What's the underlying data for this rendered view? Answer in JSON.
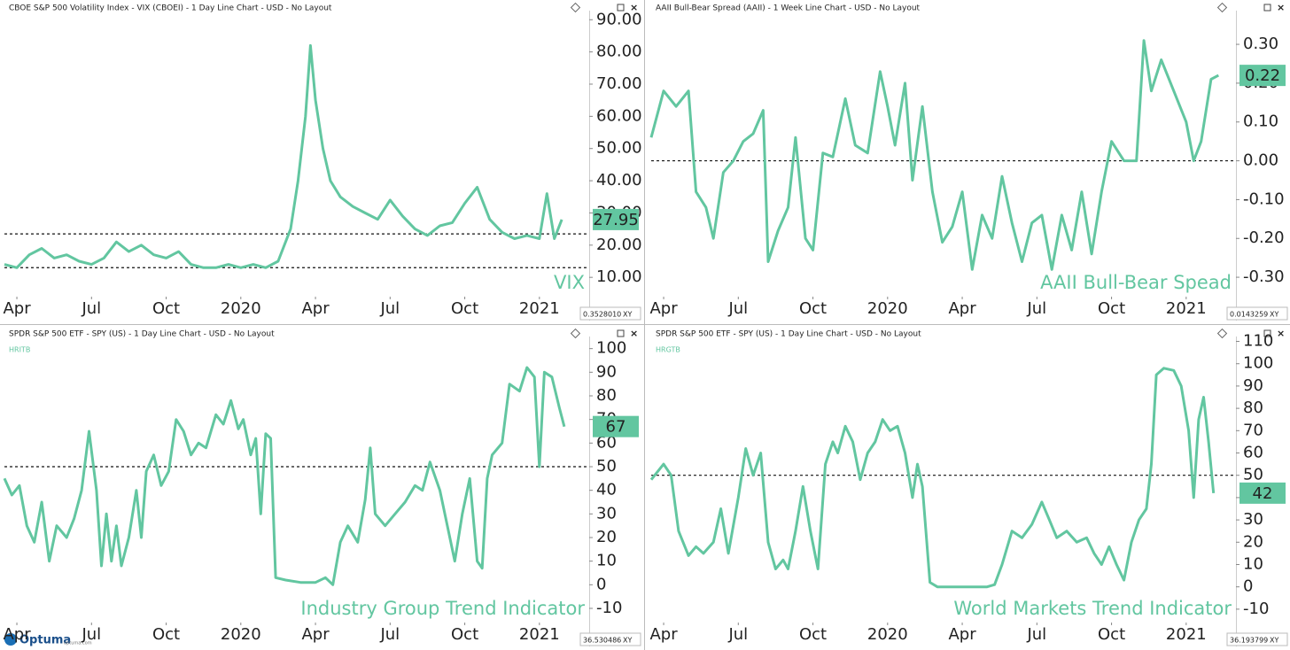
{
  "chart_data": [
    {
      "type": "line",
      "title": "CBOE S&P 500 Volatility Index - VIX (CBOEI) - 1 Day Line Chart - USD - No Layout",
      "watermark": "VIX",
      "color": "#62c6a0",
      "last_value": 27.95,
      "hlines": [
        23.5,
        13
      ],
      "corner_label": "0.3528010",
      "corner_tag": "XY",
      "x": [
        2.5,
        3,
        3.5,
        4,
        4.5,
        5,
        5.5,
        6,
        6.5,
        7,
        7.5,
        8,
        8.5,
        9,
        9.5,
        10,
        10.5,
        11,
        11.5,
        12,
        12.5,
        13,
        13.5,
        14,
        14.3,
        14.6,
        14.8,
        15,
        15.3,
        15.6,
        16,
        16.5,
        17,
        17.5,
        18,
        18.5,
        19,
        19.5,
        20,
        20.5,
        21,
        21.5,
        22,
        22.5,
        23,
        23.5,
        24,
        24.3,
        24.6,
        24.9
      ],
      "values": [
        14,
        13,
        17,
        19,
        16,
        17,
        15,
        14,
        16,
        21,
        18,
        20,
        17,
        16,
        18,
        14,
        13,
        13,
        14,
        13,
        14,
        13,
        15,
        25,
        40,
        60,
        82,
        65,
        50,
        40,
        35,
        32,
        30,
        28,
        34,
        29,
        25,
        23,
        26,
        27,
        33,
        38,
        28,
        24,
        22,
        23,
        22,
        36,
        22,
        27.95
      ],
      "xlim": [
        2.5,
        26
      ],
      "xticks": [
        {
          "value": 3,
          "label": "Apr"
        },
        {
          "value": 6,
          "label": "Jul"
        },
        {
          "value": 9,
          "label": "Oct"
        },
        {
          "value": 12,
          "label": "2020"
        },
        {
          "value": 15,
          "label": "Apr"
        },
        {
          "value": 18,
          "label": "Jul"
        },
        {
          "value": 21,
          "label": "Oct"
        },
        {
          "value": 24,
          "label": "2021"
        }
      ],
      "ylim": [
        4,
        92
      ],
      "yticks": [
        {
          "value": 10,
          "label": "10.00"
        },
        {
          "value": 20,
          "label": "20.00"
        },
        {
          "value": 30,
          "label": "30.00"
        },
        {
          "value": 40,
          "label": "40.00"
        },
        {
          "value": 50,
          "label": "50.00"
        },
        {
          "value": 60,
          "label": "60.00"
        },
        {
          "value": 70,
          "label": "70.00"
        },
        {
          "value": 80,
          "label": "80.00"
        },
        {
          "value": 90,
          "label": "90.00"
        }
      ]
    },
    {
      "type": "line",
      "title": "AAII Bull-Bear Spread (AAII) - 1 Week Line Chart - USD - No Layout",
      "watermark": "AAII Bull-Bear Spead",
      "color": "#62c6a0",
      "last_value": 0.22,
      "hlines": [
        0
      ],
      "corner_label": "0.0143259",
      "corner_tag": "XY",
      "x": [
        2.5,
        3,
        3.5,
        4,
        4.3,
        4.7,
        5,
        5.4,
        5.8,
        6.2,
        6.6,
        7,
        7.2,
        7.6,
        8,
        8.3,
        8.7,
        9,
        9.4,
        9.8,
        10.3,
        10.7,
        11.2,
        11.7,
        12,
        12.3,
        12.7,
        13,
        13.4,
        13.8,
        14.2,
        14.6,
        15,
        15.4,
        15.8,
        16.2,
        16.6,
        17,
        17.4,
        17.8,
        18.2,
        18.6,
        19,
        19.4,
        19.8,
        20.2,
        20.6,
        21,
        21.5,
        22,
        22.3,
        22.6,
        23,
        23.5,
        24,
        24.3,
        24.6,
        25,
        25.3
      ],
      "values": [
        0.06,
        0.18,
        0.14,
        0.18,
        -0.08,
        -0.12,
        -0.2,
        -0.03,
        0.0,
        0.05,
        0.07,
        0.13,
        -0.26,
        -0.18,
        -0.12,
        0.06,
        -0.2,
        -0.23,
        0.02,
        0.01,
        0.16,
        0.04,
        0.02,
        0.23,
        0.14,
        0.04,
        0.2,
        -0.05,
        0.14,
        -0.08,
        -0.21,
        -0.17,
        -0.08,
        -0.28,
        -0.14,
        -0.2,
        -0.04,
        -0.16,
        -0.26,
        -0.16,
        -0.14,
        -0.28,
        -0.14,
        -0.23,
        -0.08,
        -0.24,
        -0.08,
        0.05,
        0.0,
        0.0,
        0.31,
        0.18,
        0.26,
        0.18,
        0.1,
        0.0,
        0.05,
        0.21,
        0.22
      ],
      "xlim": [
        2.5,
        26
      ],
      "xticks": [
        {
          "value": 3,
          "label": "Apr"
        },
        {
          "value": 6,
          "label": "Jul"
        },
        {
          "value": 9,
          "label": "Oct"
        },
        {
          "value": 12,
          "label": "2020"
        },
        {
          "value": 15,
          "label": "Apr"
        },
        {
          "value": 18,
          "label": "Jul"
        },
        {
          "value": 21,
          "label": "Oct"
        },
        {
          "value": 24,
          "label": "2021"
        }
      ],
      "ylim": [
        -0.35,
        0.38
      ],
      "yticks": [
        {
          "value": -0.3,
          "label": "-0.30"
        },
        {
          "value": -0.2,
          "label": "-0.20"
        },
        {
          "value": -0.1,
          "label": "-0.10"
        },
        {
          "value": 0,
          "label": "0.00"
        },
        {
          "value": 0.1,
          "label": "0.10"
        },
        {
          "value": 0.2,
          "label": "0.20"
        },
        {
          "value": 0.3,
          "label": "0.30"
        }
      ]
    },
    {
      "type": "line",
      "title": "SPDR S&P 500 ETF - SPY (US) - 1 Day Line Chart - USD - No Layout",
      "series_label": "HRITB",
      "watermark": "Industry Group  Trend Indicator",
      "color": "#62c6a0",
      "last_value": 67,
      "hlines": [
        50
      ],
      "corner_label": "36.530486",
      "corner_tag": "XY",
      "x": [
        2.5,
        2.8,
        3.1,
        3.4,
        3.7,
        4,
        4.3,
        4.6,
        5,
        5.3,
        5.6,
        5.9,
        6.2,
        6.4,
        6.6,
        6.8,
        7,
        7.2,
        7.5,
        7.8,
        8,
        8.2,
        8.5,
        8.8,
        9.1,
        9.4,
        9.7,
        10,
        10.3,
        10.6,
        11,
        11.3,
        11.6,
        11.9,
        12.1,
        12.4,
        12.6,
        12.8,
        13,
        13.2,
        13.4,
        13.8,
        14.4,
        15,
        15.4,
        15.7,
        16,
        16.3,
        16.7,
        17,
        17.2,
        17.4,
        17.8,
        18.2,
        18.6,
        19,
        19.3,
        19.6,
        20,
        20.3,
        20.6,
        20.9,
        21.2,
        21.5,
        21.7,
        21.9,
        22.1,
        22.5,
        22.8,
        23.2,
        23.5,
        23.8,
        24.0,
        24.2,
        24.5,
        24.8,
        25.0
      ],
      "values": [
        45,
        38,
        42,
        25,
        18,
        35,
        10,
        25,
        20,
        28,
        40,
        65,
        40,
        8,
        30,
        10,
        25,
        8,
        20,
        40,
        20,
        48,
        55,
        42,
        48,
        70,
        65,
        55,
        60,
        58,
        72,
        68,
        78,
        66,
        70,
        55,
        62,
        30,
        64,
        62,
        3,
        2,
        1,
        1,
        3,
        0,
        18,
        25,
        18,
        36,
        58,
        30,
        25,
        30,
        35,
        42,
        40,
        52,
        40,
        25,
        10,
        30,
        45,
        10,
        7,
        45,
        55,
        60,
        85,
        82,
        92,
        88,
        50,
        90,
        88,
        75,
        67
      ],
      "xlim": [
        2.5,
        26
      ],
      "xticks": [
        {
          "value": 3,
          "label": "Apr"
        },
        {
          "value": 6,
          "label": "Jul"
        },
        {
          "value": 9,
          "label": "Oct"
        },
        {
          "value": 12,
          "label": "2020"
        },
        {
          "value": 15,
          "label": "Apr"
        },
        {
          "value": 18,
          "label": "Jul"
        },
        {
          "value": 21,
          "label": "Oct"
        },
        {
          "value": 24,
          "label": "2021"
        }
      ],
      "ylim": [
        -16,
        104
      ],
      "yticks": [
        -10,
        0,
        10,
        20,
        30,
        40,
        50,
        60,
        70,
        80,
        90,
        100
      ]
    },
    {
      "type": "line",
      "title": "SPDR S&P 500 ETF - SPY (US) - 1 Day Line Chart - USD - No Layout",
      "series_label": "HRGTB",
      "watermark": "World Markets Trend Indicator",
      "color": "#62c6a0",
      "last_value": 42,
      "hlines": [
        50
      ],
      "corner_label": "36.193799",
      "corner_tag": "XY",
      "x": [
        2.5,
        3,
        3.3,
        3.6,
        4,
        4.3,
        4.6,
        5,
        5.3,
        5.6,
        6,
        6.3,
        6.6,
        6.9,
        7.2,
        7.5,
        7.8,
        8,
        8.3,
        8.6,
        8.9,
        9.2,
        9.5,
        9.8,
        10,
        10.3,
        10.6,
        10.9,
        11.2,
        11.5,
        11.8,
        12.1,
        12.4,
        12.7,
        13,
        13.2,
        13.4,
        13.7,
        14,
        15,
        16,
        16.3,
        16.6,
        17,
        17.4,
        17.8,
        18.2,
        18.5,
        18.8,
        19.2,
        19.6,
        20,
        20.3,
        20.6,
        20.9,
        21.2,
        21.5,
        21.8,
        22.1,
        22.4,
        22.6,
        22.8,
        23.1,
        23.5,
        23.8,
        24.1,
        24.3,
        24.5,
        24.7,
        24.9,
        25.1
      ],
      "values": [
        48,
        55,
        50,
        25,
        14,
        18,
        15,
        20,
        35,
        15,
        40,
        62,
        50,
        60,
        20,
        8,
        12,
        8,
        25,
        45,
        25,
        8,
        55,
        65,
        60,
        72,
        65,
        48,
        60,
        65,
        75,
        70,
        72,
        60,
        40,
        55,
        45,
        2,
        0,
        0,
        0,
        1,
        10,
        25,
        22,
        28,
        38,
        30,
        22,
        25,
        20,
        22,
        15,
        10,
        18,
        10,
        3,
        20,
        30,
        35,
        55,
        95,
        98,
        97,
        90,
        70,
        40,
        75,
        85,
        65,
        42
      ],
      "xlim": [
        2.5,
        26
      ],
      "xticks": [
        {
          "value": 3,
          "label": "Apr"
        },
        {
          "value": 6,
          "label": "Jul"
        },
        {
          "value": 9,
          "label": "Oct"
        },
        {
          "value": 12,
          "label": "2020"
        },
        {
          "value": 15,
          "label": "Apr"
        },
        {
          "value": 18,
          "label": "Jul"
        },
        {
          "value": 21,
          "label": "Oct"
        },
        {
          "value": 24,
          "label": "2021"
        }
      ],
      "ylim": [
        -16,
        111
      ],
      "yticks": [
        -10,
        0,
        10,
        20,
        30,
        40,
        50,
        60,
        70,
        80,
        90,
        100,
        110
      ]
    }
  ],
  "branding": {
    "logo": "Optuma",
    "url": "optuma.com"
  }
}
